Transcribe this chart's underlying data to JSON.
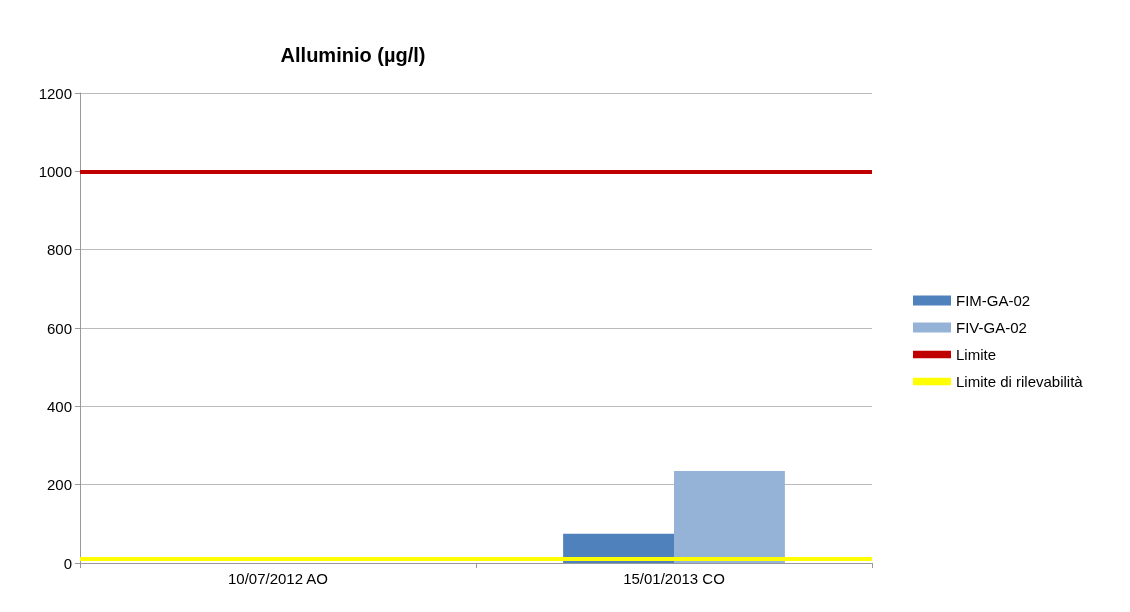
{
  "chart_data": {
    "type": "bar",
    "title": "Alluminio (µg/l)",
    "categories": [
      "10/07/2012 AO",
      "15/01/2013 CO"
    ],
    "series": [
      {
        "name": "FIM-GA-02",
        "color": "#4f81bd",
        "values": [
          null,
          75
        ]
      },
      {
        "name": "FIV-GA-02",
        "color": "#95b3d7",
        "values": [
          null,
          235
        ]
      }
    ],
    "ref_lines": [
      {
        "axis": "y",
        "value": 1000,
        "label": "Limite",
        "color": "#c00000"
      },
      {
        "axis": "y",
        "value": 10,
        "label": "Limite di rilevabilità",
        "color": "#ffff00"
      }
    ],
    "ylim": [
      0,
      1200
    ],
    "yticks": [
      0,
      200,
      400,
      600,
      800,
      1000,
      1200
    ],
    "grid": "y",
    "legend": "right"
  }
}
